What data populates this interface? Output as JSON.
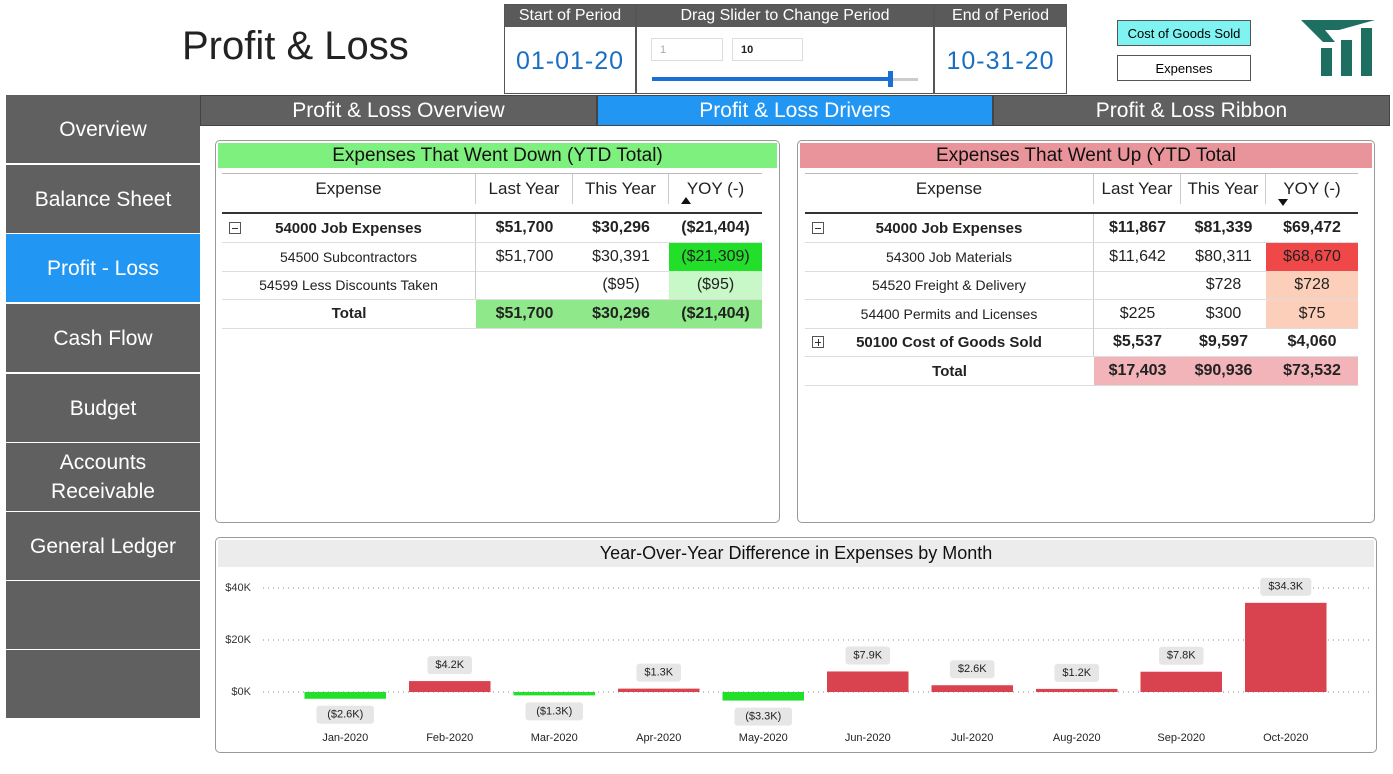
{
  "header": {
    "title": "Profit & Loss"
  },
  "period": {
    "start_label": "Start of Period",
    "start": "01-01-20",
    "slider_label": "Drag Slider to Change Period",
    "slider_min": "1",
    "slider_max": "10",
    "end_label": "End of Period",
    "end": "10-31-20"
  },
  "buttons": [
    "Cost of Goods Sold",
    "Expenses"
  ],
  "nav": [
    "Overview",
    "Balance Sheet",
    "Profit - Loss",
    "Cash Flow",
    "Budget",
    "Accounts Receivable",
    "General Ledger"
  ],
  "tabs": [
    "Profit & Loss Overview",
    "Profit & Loss Drivers",
    "Profit & Loss Ribbon"
  ],
  "tables": {
    "down": {
      "title": "Expenses That Went Down (YTD Total)",
      "headers": {
        "expense": "Expense",
        "last_year": "Last Year",
        "this_year": "This Year",
        "yoy": "YOY (-)"
      },
      "rows": [
        {
          "expense": "54000 Job Expenses",
          "last_year": "$51,700",
          "this_year": "$30,296",
          "yoy": "($21,404)"
        },
        {
          "expense": "54500 Subcontractors",
          "last_year": "$51,700",
          "this_year": "$30,391",
          "yoy": "($21,309)"
        },
        {
          "expense": "54599 Less Discounts Taken",
          "this_year": "($95)",
          "yoy": "($95)"
        },
        {
          "expense": "Total",
          "last_year": "$51,700",
          "this_year": "$30,296",
          "yoy": "($21,404)"
        }
      ]
    },
    "up": {
      "title": "Expenses That Went Up (YTD Total",
      "headers": {
        "expense": "Expense",
        "last_year": "Last Year",
        "this_year": "This Year",
        "yoy": "YOY (-)"
      },
      "rows": [
        {
          "expense": "54000 Job Expenses",
          "last_year": "$11,867",
          "this_year": "$81,339",
          "yoy": "$69,472"
        },
        {
          "expense": "54300 Job Materials",
          "last_year": "$11,642",
          "this_year": "$80,311",
          "yoy": "$68,670"
        },
        {
          "expense": "54520 Freight & Delivery",
          "this_year": "$728",
          "yoy": "$728"
        },
        {
          "expense": "54400 Permits and Licenses",
          "last_year": "$225",
          "this_year": "$300",
          "yoy": "$75"
        },
        {
          "expense": "50100 Cost of Goods Sold",
          "last_year": "$5,537",
          "this_year": "$9,597",
          "yoy": "$4,060"
        },
        {
          "expense": "Total",
          "last_year": "$17,403",
          "this_year": "$90,936",
          "yoy": "$73,532"
        }
      ]
    }
  },
  "chart_data": {
    "type": "bar",
    "title": "Year-Over-Year Difference in Expenses by Month",
    "categories": [
      "Jan-2020",
      "Feb-2020",
      "Mar-2020",
      "Apr-2020",
      "May-2020",
      "Jun-2020",
      "Jul-2020",
      "Aug-2020",
      "Sep-2020",
      "Oct-2020"
    ],
    "values": [
      -2600,
      4200,
      -1300,
      1300,
      -3300,
      7900,
      2600,
      1200,
      7800,
      34300
    ],
    "value_labels": [
      "($2.6K)",
      "$4.2K",
      "($1.3K)",
      "$1.3K",
      "($3.3K)",
      "$7.9K",
      "$2.6K",
      "$1.2K",
      "$7.8K",
      "$34.3K"
    ],
    "positive_color": "#d9434f",
    "negative_color": "#22e02a",
    "ylim": [
      -5000,
      40000
    ],
    "yticks": [
      {
        "value": 0,
        "label": "$0K"
      },
      {
        "value": 20000,
        "label": "$20K"
      },
      {
        "value": 40000,
        "label": "$40K"
      }
    ],
    "grid": true
  }
}
